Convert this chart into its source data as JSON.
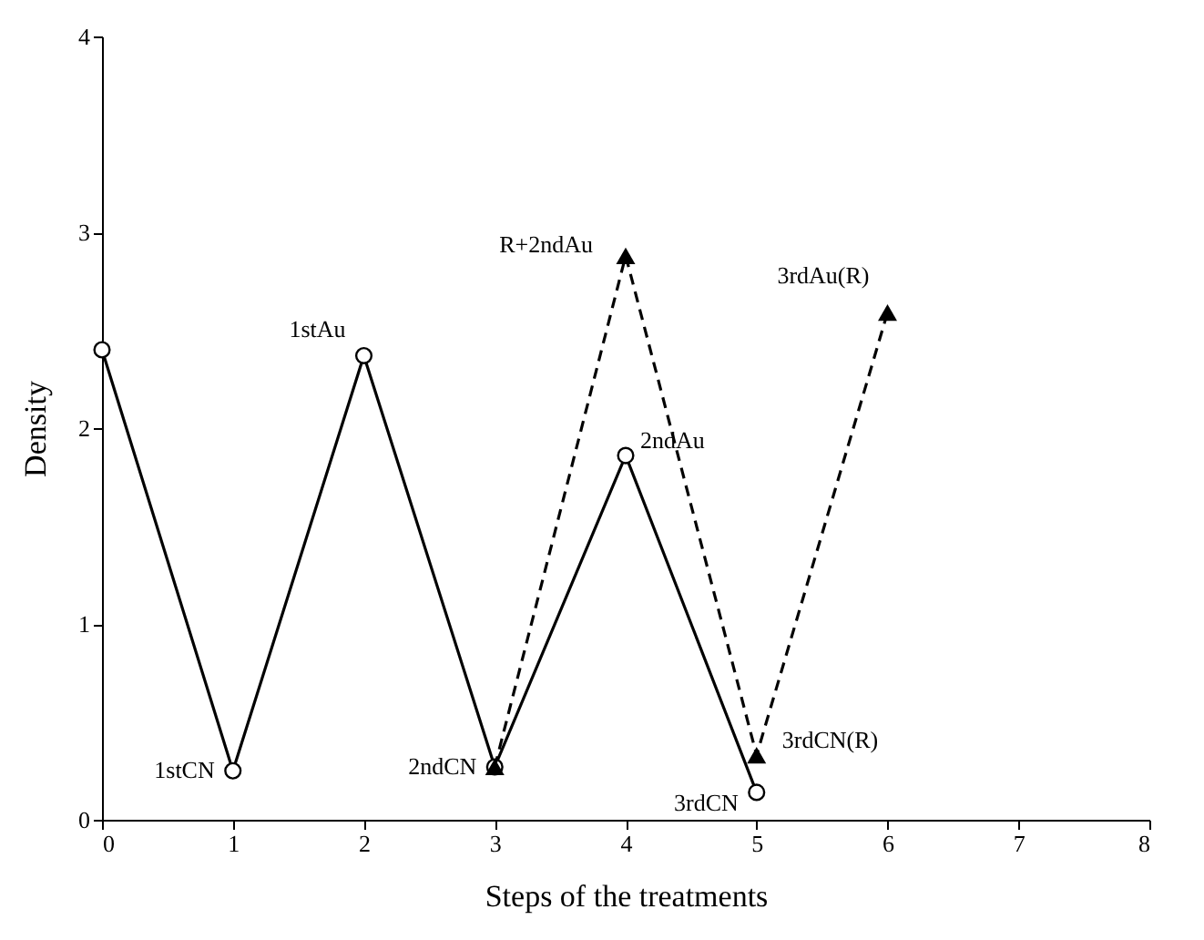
{
  "chart_data": {
    "type": "line",
    "xlabel": "Steps of the treatments",
    "ylabel": "Density",
    "xlim": [
      0,
      8
    ],
    "xticks": [
      0,
      1,
      2,
      3,
      4,
      5,
      6,
      7,
      8
    ],
    "ylim": [
      0,
      4
    ],
    "yticks": [
      0,
      1,
      2,
      3,
      4
    ],
    "grid": false,
    "series": [
      {
        "color": "#000000",
        "x": [
          0,
          1,
          2,
          3,
          4,
          5
        ],
        "values": [
          2.4,
          0.25,
          2.37,
          0.27,
          1.86,
          0.14
        ],
        "marker": "circle",
        "line_style": "solid"
      },
      {
        "color": "#000000",
        "x": [
          3,
          4,
          5,
          6
        ],
        "values": [
          0.27,
          2.88,
          0.33,
          2.59
        ],
        "marker": "triangle",
        "line_style": "dashed"
      }
    ],
    "annotations": [
      {
        "text": "1stCN",
        "x": 1,
        "y": 0.25
      },
      {
        "text": "1stAu",
        "x": 2,
        "y": 2.37
      },
      {
        "text": "2ndCN",
        "x": 3,
        "y": 0.27
      },
      {
        "text": "R+2ndAu",
        "x": 4,
        "y": 2.88
      },
      {
        "text": "2ndAu",
        "x": 4,
        "y": 1.86
      },
      {
        "text": "3rdCN(R)",
        "x": 5,
        "y": 0.33
      },
      {
        "text": "3rdCN",
        "x": 5,
        "y": 0.14
      },
      {
        "text": "3rdAu(R)",
        "x": 6,
        "y": 2.59
      }
    ]
  }
}
